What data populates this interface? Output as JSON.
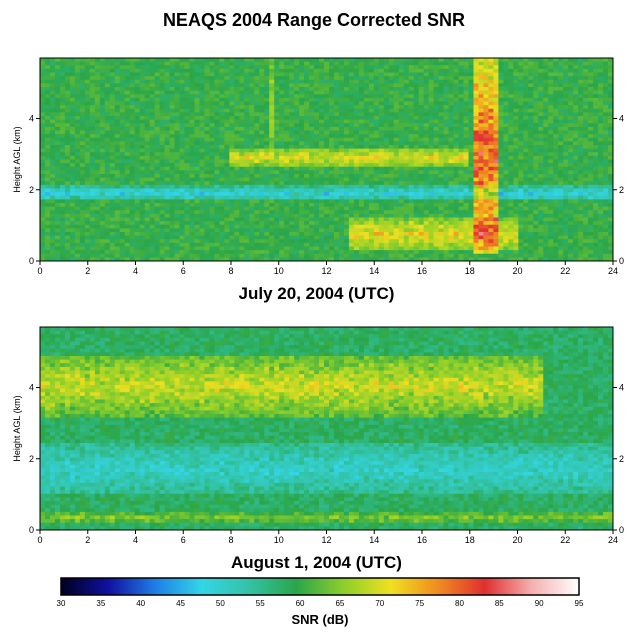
{
  "title": "NEAQS 2004 Range Corrected SNR",
  "chart_data": [
    {
      "type": "heatmap",
      "title": "July 20, 2004 (UTC)",
      "xlabel": "",
      "ylabel": "Height AGL (km)",
      "xlim": [
        0,
        24
      ],
      "ylim": [
        0,
        5.7
      ],
      "xticks": [
        0,
        2,
        4,
        6,
        8,
        10,
        12,
        14,
        16,
        18,
        20,
        22,
        24
      ],
      "yticks": [
        0,
        2,
        4
      ],
      "features": [
        {
          "name": "background",
          "snr_db": 60
        },
        {
          "name": "elevated layer",
          "x": [
            8,
            18
          ],
          "y": [
            2.6,
            3.2
          ],
          "snr_db": 70
        },
        {
          "name": "low-level band",
          "x": [
            0,
            24
          ],
          "y": [
            1.7,
            2.1
          ],
          "snr_db": 48
        },
        {
          "name": "boundary-layer plume",
          "x": [
            13,
            20
          ],
          "y": [
            0.3,
            1.2
          ],
          "snr_db": 72
        },
        {
          "name": "vertical plume",
          "x": [
            18.2,
            19.2
          ],
          "y": [
            0.2,
            5.7
          ],
          "snr_db": 82
        },
        {
          "name": "vertical streak",
          "x": [
            9.5,
            9.8
          ],
          "y": [
            3,
            5.7
          ],
          "snr_db": 68
        }
      ]
    },
    {
      "type": "heatmap",
      "title": "August 1, 2004 (UTC)",
      "xlabel": "",
      "ylabel": "Height AGL (km)",
      "xlim": [
        0,
        24
      ],
      "ylim": [
        0,
        5.7
      ],
      "xticks": [
        0,
        2,
        4,
        6,
        8,
        10,
        12,
        14,
        16,
        18,
        20,
        22,
        24
      ],
      "yticks": [
        0,
        2,
        4
      ],
      "features": [
        {
          "name": "background",
          "snr_db": 58
        },
        {
          "name": "elevated layer",
          "x": [
            0,
            21
          ],
          "y": [
            3.2,
            4.9
          ],
          "snr_db": 70
        },
        {
          "name": "low-level band",
          "x": [
            0,
            24
          ],
          "y": [
            1.0,
            2.4
          ],
          "snr_db": 50
        },
        {
          "name": "surface layer",
          "x": [
            0,
            24
          ],
          "y": [
            0.2,
            0.5
          ],
          "snr_db": 65
        }
      ]
    }
  ],
  "colorbar": {
    "label": "SNR (dB)",
    "min": 30,
    "max": 95,
    "ticks": [
      30,
      35,
      40,
      45,
      50,
      55,
      60,
      65,
      70,
      75,
      80,
      85,
      90,
      95
    ],
    "colors": [
      "#000020",
      "#1010a0",
      "#1e7ee6",
      "#33d6e6",
      "#33c2a3",
      "#2aa64a",
      "#8ccf2a",
      "#f0e020",
      "#f08c20",
      "#e03030",
      "#f5b0b0",
      "#ffffff"
    ]
  }
}
